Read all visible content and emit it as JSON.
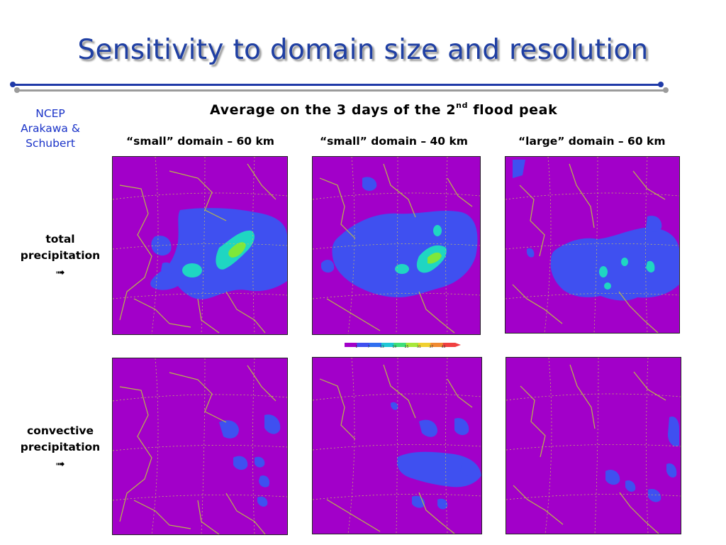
{
  "title": "Sensitivity to domain size and resolution",
  "model_label": [
    "NCEP",
    "Arakawa &",
    "Schubert"
  ],
  "subtitle": {
    "text": "Average on the 3 days of the 2",
    "sup": "nd",
    "tail": " flood peak"
  },
  "columns": [
    "“small” domain – 60 km",
    "“small” domain – 40 km",
    "“large” domain – 60 km"
  ],
  "rows": [
    {
      "lines": [
        "total",
        "precipitation"
      ],
      "arrow": "➟"
    },
    {
      "lines": [
        "convective",
        "precipitation"
      ],
      "arrow": "➟"
    }
  ],
  "colors": {
    "title": "#1f3fa3",
    "background_field": "#a200c9",
    "light_rain": "#3f50f0",
    "moderate_rain": "#1fd6c2",
    "heavy_rain": "#7ee83a",
    "border_lines": "#b8b84a"
  },
  "colorbar": {
    "unit_label": "",
    "colors": [
      "#a200c9",
      "#3f50f0",
      "#2f6ff0",
      "#1fc8d6",
      "#3fe07a",
      "#a8e83a",
      "#f0d030",
      "#f08a30",
      "#f04040"
    ],
    "ticks": [
      "1",
      "7",
      "13",
      "19",
      "25",
      "31",
      "37",
      "43"
    ]
  }
}
